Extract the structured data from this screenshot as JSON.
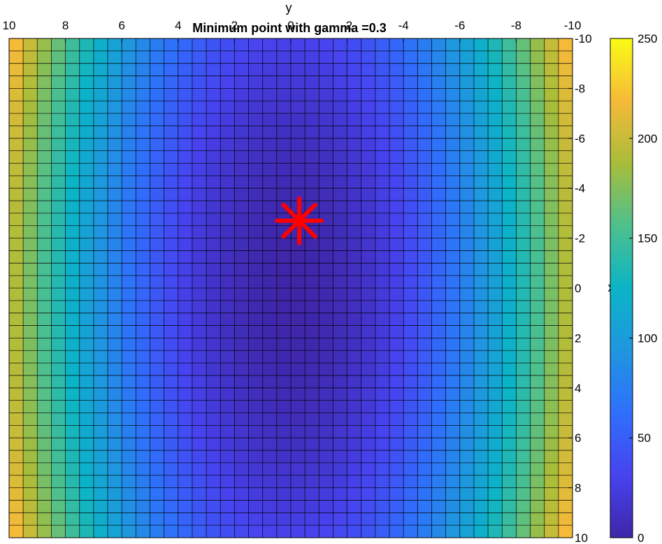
{
  "chart_data": {
    "type": "heatmap",
    "title": "Minimum point with gamma =0.3",
    "xlabel": "y",
    "ylabel": "x",
    "x_axis_location": "top",
    "x_direction": "reversed",
    "y_direction": "reversed",
    "xlim": [
      -10,
      10
    ],
    "ylim": [
      -10,
      10
    ],
    "x_ticks": [
      "10",
      "8",
      "6",
      "4",
      "2",
      "0",
      "-2",
      "-4",
      "-6",
      "-8",
      "-10"
    ],
    "y_ticks": [
      "-10",
      "-8",
      "-6",
      "-4",
      "-2",
      "0",
      "2",
      "4",
      "6",
      "8",
      "10"
    ],
    "grid_step": 0.5,
    "grid": true,
    "surface": {
      "function": "2*y^2 + 0.3*x^2",
      "y_range": [
        -10,
        10
      ],
      "x_range": [
        -10,
        10
      ],
      "value_range": [
        0,
        230
      ]
    },
    "colorbar": {
      "position": "right",
      "colormap": "parula",
      "range": [
        0,
        250
      ],
      "ticks": [
        "0",
        "50",
        "100",
        "150",
        "200",
        "250"
      ]
    },
    "marker": {
      "symbol": "asterisk",
      "y": -0.3,
      "x": -2.7,
      "color": "#ff0000"
    }
  }
}
